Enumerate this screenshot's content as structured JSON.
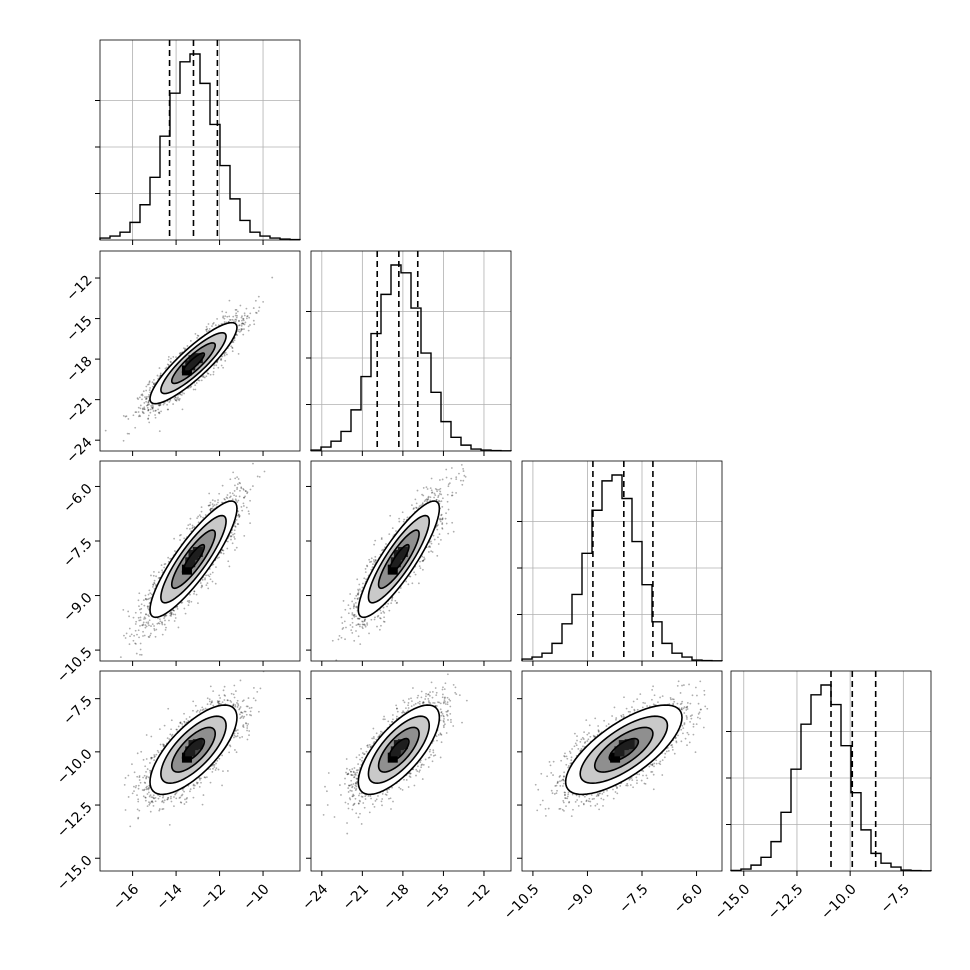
{
  "chart_data": {
    "type": "corner",
    "grid": true,
    "parameters": [
      {
        "range": [
          -17.5,
          -8.3
        ],
        "ticks": [
          -16,
          -14,
          -12,
          -10
        ],
        "tick_labels": [
          "−16",
          "−14",
          "−12",
          "−10"
        ]
      },
      {
        "range": [
          -24.8,
          -10.0
        ],
        "ticks": [
          -24,
          -21,
          -18,
          -15,
          -12
        ],
        "tick_labels": [
          "−24",
          "−21",
          "−18",
          "−15",
          "−12"
        ]
      },
      {
        "range": [
          -10.8,
          -5.3
        ],
        "ticks": [
          -10.5,
          -9.0,
          -7.5,
          -6.0
        ],
        "tick_labels": [
          "−10.5",
          "−9.0",
          "−7.5",
          "−6.0"
        ]
      },
      {
        "range": [
          -15.6,
          -6.2
        ],
        "ticks": [
          -15.0,
          -12.5,
          -10.0,
          -7.5
        ],
        "tick_labels": [
          "−15.0",
          "−12.5",
          "−10.0",
          "−7.5"
        ]
      }
    ],
    "histograms": [
      {
        "edges_range": [
          -17.5,
          -8.3
        ],
        "counts": [
          1,
          2,
          4,
          9,
          18,
          32,
          53,
          75,
          91,
          95,
          80,
          59,
          38,
          21,
          10,
          4,
          2,
          1,
          0.5,
          0.2
        ],
        "quantiles": [
          -14.3,
          -13.2,
          -12.1
        ]
      },
      {
        "edges_range": [
          -24.8,
          -10.0
        ],
        "counts": [
          0.5,
          2,
          5,
          10,
          21,
          38,
          60,
          80,
          95,
          91,
          73,
          50,
          30,
          15,
          7,
          3,
          1,
          0.5,
          0.2,
          0.1
        ],
        "quantiles": [
          -19.9,
          -18.3,
          -16.9
        ]
      },
      {
        "edges_range": [
          -10.8,
          -5.3
        ],
        "counts": [
          1,
          2,
          4,
          9,
          19,
          34,
          55,
          77,
          92,
          95,
          83,
          61,
          39,
          20,
          9,
          4,
          2,
          0.5,
          0.2,
          0.1
        ],
        "quantiles": [
          -8.85,
          -8.0,
          -7.2
        ]
      },
      {
        "edges_range": [
          -15.6,
          -6.2
        ],
        "counts": [
          0.3,
          1,
          3,
          7,
          15,
          30,
          52,
          75,
          90,
          95,
          85,
          64,
          40,
          21,
          9,
          4,
          2,
          0.5,
          0.2,
          0.1
        ],
        "quantiles": [
          -10.9,
          -9.9,
          -8.8
        ]
      }
    ],
    "pairs": [
      {
        "x": 0,
        "y": 1,
        "mean": [
          -13.2,
          -18.3
        ],
        "sd": [
          1.0,
          1.5
        ],
        "rho": 0.88
      },
      {
        "x": 0,
        "y": 2,
        "mean": [
          -13.2,
          -8.0
        ],
        "sd": [
          1.0,
          0.8
        ],
        "rho": 0.87
      },
      {
        "x": 1,
        "y": 2,
        "mean": [
          -18.3,
          -8.0
        ],
        "sd": [
          1.5,
          0.8
        ],
        "rho": 0.87
      },
      {
        "x": 0,
        "y": 3,
        "mean": [
          -13.2,
          -9.9
        ],
        "sd": [
          1.0,
          1.05
        ],
        "rho": 0.72
      },
      {
        "x": 1,
        "y": 3,
        "mean": [
          -18.3,
          -9.9
        ],
        "sd": [
          1.5,
          1.05
        ],
        "rho": 0.72
      },
      {
        "x": 2,
        "y": 3,
        "mean": [
          -8.0,
          -9.9
        ],
        "sd": [
          0.8,
          1.05
        ],
        "rho": 0.72
      }
    ],
    "contour_levels_sigma": [
      0.5,
      1.0,
      1.5,
      2.0
    ]
  }
}
